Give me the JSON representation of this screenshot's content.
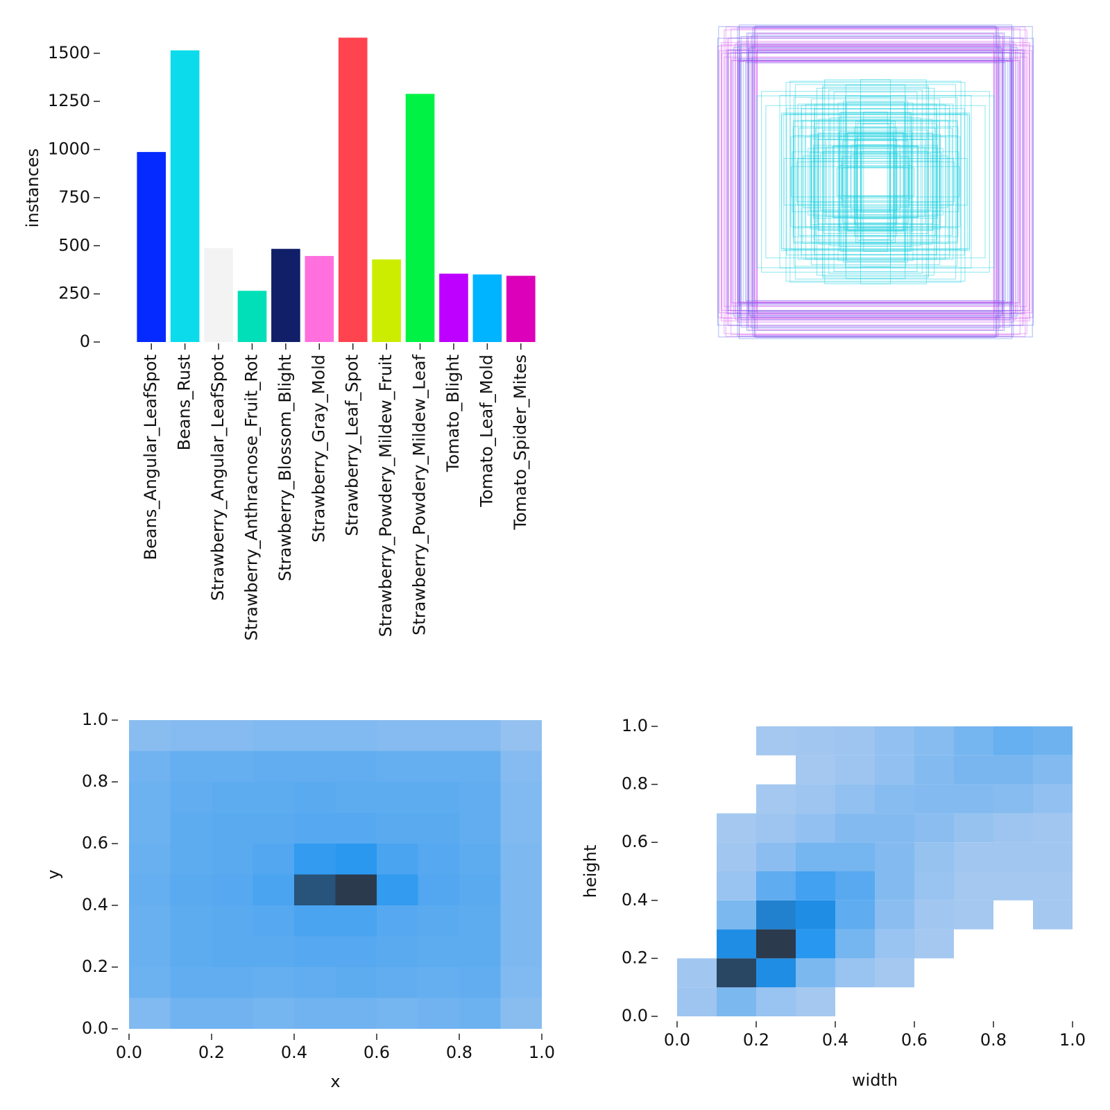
{
  "chart_data": [
    {
      "type": "bar",
      "ylabel": "instances",
      "categories": [
        "Beans_Angular_LeafSpot",
        "Beans_Rust",
        "Strawberry_Angular_LeafSpot",
        "Strawberry_Anthracnose_Fruit_Rot",
        "Strawberry_Blossom_Blight",
        "Strawberry_Gray_Mold",
        "Strawberry_Leaf_Spot",
        "Strawberry_Powdery_Mildew_Fruit",
        "Strawberry_Powdery_Mildew_Leaf",
        "Tomato_Blight",
        "Tomato_Leaf_Mold",
        "Tomato_Spider_Mites"
      ],
      "values": [
        987,
        1515,
        488,
        266,
        484,
        447,
        1581,
        429,
        1289,
        355,
        351,
        344
      ],
      "colors": [
        "#042aff",
        "#0bdbeb",
        "#f3f3f3",
        "#00dfb7",
        "#111f68",
        "#ff6fdd",
        "#ff444f",
        "#cced00",
        "#00f344",
        "#bd00ff",
        "#00b4ff",
        "#dd00ba"
      ],
      "ylim": [
        0,
        1600
      ],
      "yticks": [
        0,
        250,
        500,
        750,
        1000,
        1250,
        1500
      ]
    },
    {
      "type": "hist2d",
      "xlabel": "x",
      "ylabel": "y",
      "xbins": [
        0,
        0.1,
        0.2,
        0.3,
        0.4,
        0.5,
        0.6,
        0.7,
        0.8,
        0.9,
        1
      ],
      "ybins": [
        0,
        0.1,
        0.2,
        0.3,
        0.4,
        0.5,
        0.6,
        0.7,
        0.8,
        0.9,
        1
      ],
      "counts": [
        [
          10,
          14,
          14,
          13,
          14,
          14,
          13,
          14,
          15,
          8
        ],
        [
          15,
          18,
          18,
          17,
          18,
          19,
          18,
          17,
          18,
          10
        ],
        [
          16,
          19,
          20,
          20,
          21,
          21,
          20,
          19,
          19,
          11
        ],
        [
          16,
          19,
          20,
          21,
          24,
          24,
          21,
          20,
          19,
          11
        ],
        [
          17,
          20,
          21,
          24,
          60,
          70,
          30,
          22,
          20,
          11
        ],
        [
          16,
          19,
          20,
          22,
          30,
          32,
          24,
          21,
          19,
          11
        ],
        [
          15,
          19,
          20,
          20,
          21,
          21,
          20,
          20,
          18,
          10
        ],
        [
          15,
          18,
          19,
          19,
          20,
          19,
          19,
          19,
          18,
          10
        ],
        [
          14,
          17,
          17,
          18,
          18,
          18,
          17,
          17,
          17,
          9
        ],
        [
          8,
          9,
          9,
          10,
          10,
          10,
          9,
          9,
          9,
          5
        ]
      ],
      "cmap": [
        "#a8c9f0",
        "#1f93f0",
        "#2b3a4c"
      ],
      "xlim": [
        0,
        1
      ],
      "ylim": [
        0,
        1
      ],
      "xticks": [
        {
          "value": 0,
          "label": "0.0"
        },
        0.2,
        0.4,
        0.6,
        0.8,
        {
          "value": 1,
          "label": "1.0"
        }
      ],
      "yticks": [
        {
          "value": 0,
          "label": "0.0"
        },
        0.2,
        0.4,
        0.6,
        0.8,
        {
          "value": 1,
          "label": "1.0"
        }
      ]
    },
    {
      "type": "hist2d",
      "xlabel": "width",
      "ylabel": "height",
      "xbins": [
        0,
        0.1,
        0.2,
        0.3,
        0.4,
        0.5,
        0.6,
        0.7,
        0.8,
        0.9,
        1
      ],
      "ybins": [
        0,
        0.1,
        0.2,
        0.3,
        0.4,
        0.5,
        0.6,
        0.7,
        0.8,
        0.9,
        1
      ],
      "counts": [
        [
          3,
          12,
          4,
          1,
          0,
          0,
          0,
          0,
          0,
          0
        ],
        [
          2,
          70,
          40,
          12,
          4,
          1,
          0,
          0,
          0,
          0
        ],
        [
          0,
          40,
          75,
          35,
          14,
          4,
          1,
          0,
          0,
          0
        ],
        [
          0,
          12,
          45,
          40,
          20,
          8,
          2,
          1,
          0,
          1
        ],
        [
          0,
          4,
          20,
          28,
          22,
          10,
          4,
          1,
          1,
          1
        ],
        [
          0,
          2,
          8,
          14,
          14,
          10,
          5,
          2,
          2,
          2
        ],
        [
          0,
          1,
          3,
          6,
          10,
          10,
          8,
          5,
          3,
          2
        ],
        [
          0,
          0,
          1,
          3,
          6,
          9,
          10,
          10,
          9,
          6
        ],
        [
          0,
          0,
          0,
          1,
          3,
          6,
          10,
          13,
          13,
          10
        ],
        [
          0,
          0,
          1,
          2,
          3,
          6,
          9,
          14,
          18,
          16
        ]
      ],
      "cmap": [
        "#a8c9f0",
        "#1f93f0",
        "#2b3a4c"
      ],
      "xlim": [
        0,
        1
      ],
      "ylim": [
        0,
        1
      ],
      "xticks": [
        {
          "value": 0,
          "label": "0.0"
        },
        0.2,
        0.4,
        0.6,
        0.8,
        {
          "value": 1,
          "label": "1.0"
        }
      ],
      "yticks": [
        {
          "value": 0,
          "label": "0.0"
        },
        0.2,
        0.4,
        0.6,
        0.8,
        {
          "value": 1,
          "label": "1.0"
        }
      ]
    }
  ]
}
